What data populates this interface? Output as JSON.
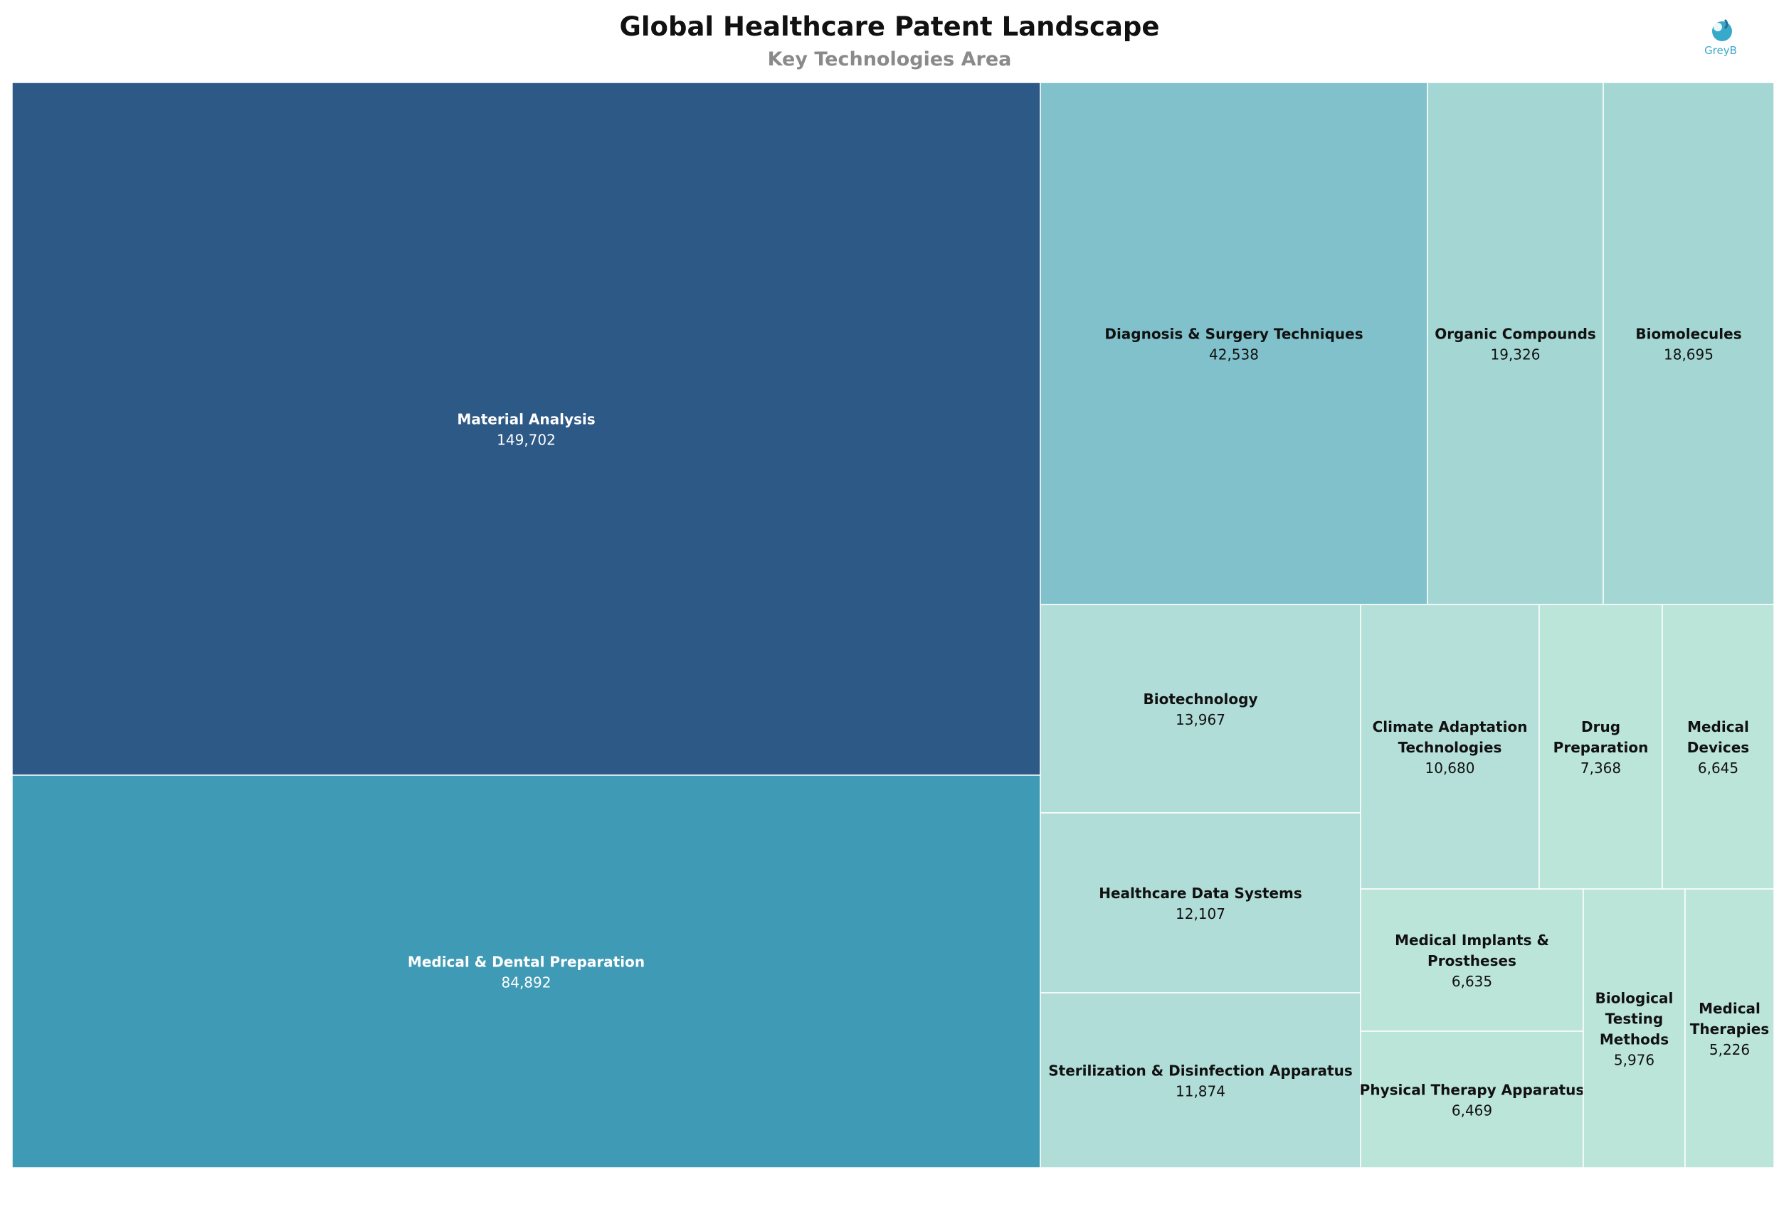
{
  "chart_data": {
    "type": "treemap",
    "title": "Global Healthcare Patent Landscape",
    "subtitle": "Key Technologies Area",
    "logo_text": "GreyB",
    "colors": {
      "dark": "#2d5986",
      "mid": "#3f9ab5",
      "light_blue": "#80c1cb",
      "pale": "#a4d7d3",
      "paler": "#b1ddd8",
      "palest": "#bce5d9",
      "logo": "#39a9c9"
    },
    "items": [
      {
        "label": "Material Analysis",
        "value": 149702,
        "value_text": "149,702",
        "color": "#2d5986",
        "text_color": "#ffffff"
      },
      {
        "label": "Medical & Dental Preparation",
        "value": 84892,
        "value_text": "84,892",
        "color": "#3f9ab5",
        "text_color": "#ffffff"
      },
      {
        "label": "Diagnosis & Surgery Techniques",
        "value": 42538,
        "value_text": "42,538",
        "color": "#80c1cb",
        "text_color": "#111111"
      },
      {
        "label": "Organic Compounds",
        "value": 19326,
        "value_text": "19,326",
        "color": "#a4d7d3",
        "text_color": "#111111"
      },
      {
        "label": "Biomolecules",
        "value": 18695,
        "value_text": "18,695",
        "color": "#a4d7d3",
        "text_color": "#111111"
      },
      {
        "label": "Biotechnology",
        "value": 13967,
        "value_text": "13,967",
        "color": "#b1ddd8",
        "text_color": "#111111"
      },
      {
        "label": "Healthcare Data Systems",
        "value": 12107,
        "value_text": "12,107",
        "color": "#b1ddd8",
        "text_color": "#111111"
      },
      {
        "label": "Sterilization & Disinfection Apparatus",
        "value": 11874,
        "value_text": "11,874",
        "color": "#b1ddd8",
        "text_color": "#111111"
      },
      {
        "label": "Climate Adaptation Technologies",
        "value": 10680,
        "value_text": "10,680",
        "color": "#b5e0d9",
        "text_color": "#111111"
      },
      {
        "label": "Drug Preparation",
        "value": 7368,
        "value_text": "7,368",
        "color": "#bce5d9",
        "text_color": "#111111"
      },
      {
        "label": "Medical Devices",
        "value": 6645,
        "value_text": "6,645",
        "color": "#bce5d9",
        "text_color": "#111111"
      },
      {
        "label": "Medical Implants & Prostheses",
        "value": 6635,
        "value_text": "6,635",
        "color": "#bce5d9",
        "text_color": "#111111"
      },
      {
        "label": "Physical Therapy Apparatus",
        "value": 6469,
        "value_text": "6,469",
        "color": "#bce5d9",
        "text_color": "#111111"
      },
      {
        "label": "Biological Testing Methods",
        "value": 5976,
        "value_text": "5,976",
        "color": "#bce5d9",
        "text_color": "#111111"
      },
      {
        "label": "Medical Therapies",
        "value": 5226,
        "value_text": "5,226",
        "color": "#bce5d9",
        "text_color": "#111111"
      }
    ]
  }
}
